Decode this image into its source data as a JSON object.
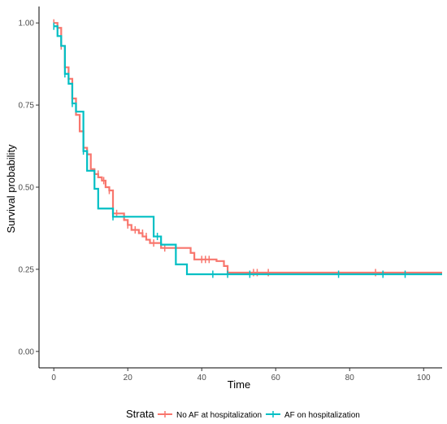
{
  "chart_data": {
    "type": "line",
    "subtype": "kaplan-meier-step",
    "xlabel": "Time",
    "ylabel": "Survival probability",
    "xlim": [
      -4,
      105
    ],
    "ylim": [
      -0.05,
      1.05
    ],
    "x_ticks": [
      0,
      20,
      40,
      60,
      80,
      100
    ],
    "y_ticks": [
      0.0,
      0.25,
      0.5,
      0.75,
      1.0
    ],
    "x_tick_labels": [
      "0",
      "20",
      "40",
      "60",
      "80",
      "100"
    ],
    "y_tick_labels": [
      "0.00",
      "0.25",
      "0.50",
      "0.75",
      "1.00"
    ],
    "grid": false,
    "legend": {
      "title": "Strata",
      "position": "bottom"
    },
    "series": [
      {
        "name": "No AF at hospitalization",
        "color": "#F8766D",
        "steps": [
          [
            0,
            1.0
          ],
          [
            1,
            0.985
          ],
          [
            2,
            0.93
          ],
          [
            3,
            0.865
          ],
          [
            4,
            0.83
          ],
          [
            5,
            0.77
          ],
          [
            6,
            0.72
          ],
          [
            7,
            0.67
          ],
          [
            8,
            0.62
          ],
          [
            9,
            0.6
          ],
          [
            10,
            0.555
          ],
          [
            11,
            0.54
          ],
          [
            12,
            0.53
          ],
          [
            13,
            0.52
          ],
          [
            14,
            0.5
          ],
          [
            15,
            0.49
          ],
          [
            16,
            0.42
          ],
          [
            19,
            0.4
          ],
          [
            20,
            0.385
          ],
          [
            21,
            0.37
          ],
          [
            23,
            0.36
          ],
          [
            24,
            0.35
          ],
          [
            25,
            0.34
          ],
          [
            26,
            0.33
          ],
          [
            29,
            0.315
          ],
          [
            37,
            0.3
          ],
          [
            38,
            0.28
          ],
          [
            44,
            0.275
          ],
          [
            46,
            0.26
          ],
          [
            47,
            0.24
          ],
          [
            105,
            0.24
          ]
        ],
        "censored": [
          [
            0,
            1.0
          ],
          [
            2,
            0.93
          ],
          [
            12,
            0.54
          ],
          [
            13.5,
            0.52
          ],
          [
            15,
            0.49
          ],
          [
            17,
            0.42
          ],
          [
            20,
            0.385
          ],
          [
            22,
            0.37
          ],
          [
            24,
            0.36
          ],
          [
            25,
            0.35
          ],
          [
            27,
            0.33
          ],
          [
            30,
            0.315
          ],
          [
            40,
            0.28
          ],
          [
            41,
            0.28
          ],
          [
            42,
            0.28
          ],
          [
            54,
            0.24
          ],
          [
            55,
            0.24
          ],
          [
            58,
            0.24
          ],
          [
            87,
            0.24
          ]
        ]
      },
      {
        "name": "AF on hospitalization",
        "color": "#00BFC4",
        "steps": [
          [
            0,
            0.99
          ],
          [
            1,
            0.96
          ],
          [
            2,
            0.93
          ],
          [
            3,
            0.845
          ],
          [
            4,
            0.815
          ],
          [
            5,
            0.755
          ],
          [
            6,
            0.73
          ],
          [
            8,
            0.61
          ],
          [
            9,
            0.55
          ],
          [
            11,
            0.495
          ],
          [
            12,
            0.435
          ],
          [
            16,
            0.41
          ],
          [
            27,
            0.35
          ],
          [
            29,
            0.325
          ],
          [
            33,
            0.265
          ],
          [
            36,
            0.235
          ],
          [
            105,
            0.235
          ]
        ],
        "censored": [
          [
            0,
            0.99
          ],
          [
            3,
            0.845
          ],
          [
            5,
            0.755
          ],
          [
            8,
            0.61
          ],
          [
            16,
            0.41
          ],
          [
            28,
            0.35
          ],
          [
            43,
            0.235
          ],
          [
            47,
            0.235
          ],
          [
            53,
            0.235
          ],
          [
            77,
            0.235
          ],
          [
            89,
            0.235
          ],
          [
            95,
            0.235
          ]
        ]
      }
    ]
  }
}
